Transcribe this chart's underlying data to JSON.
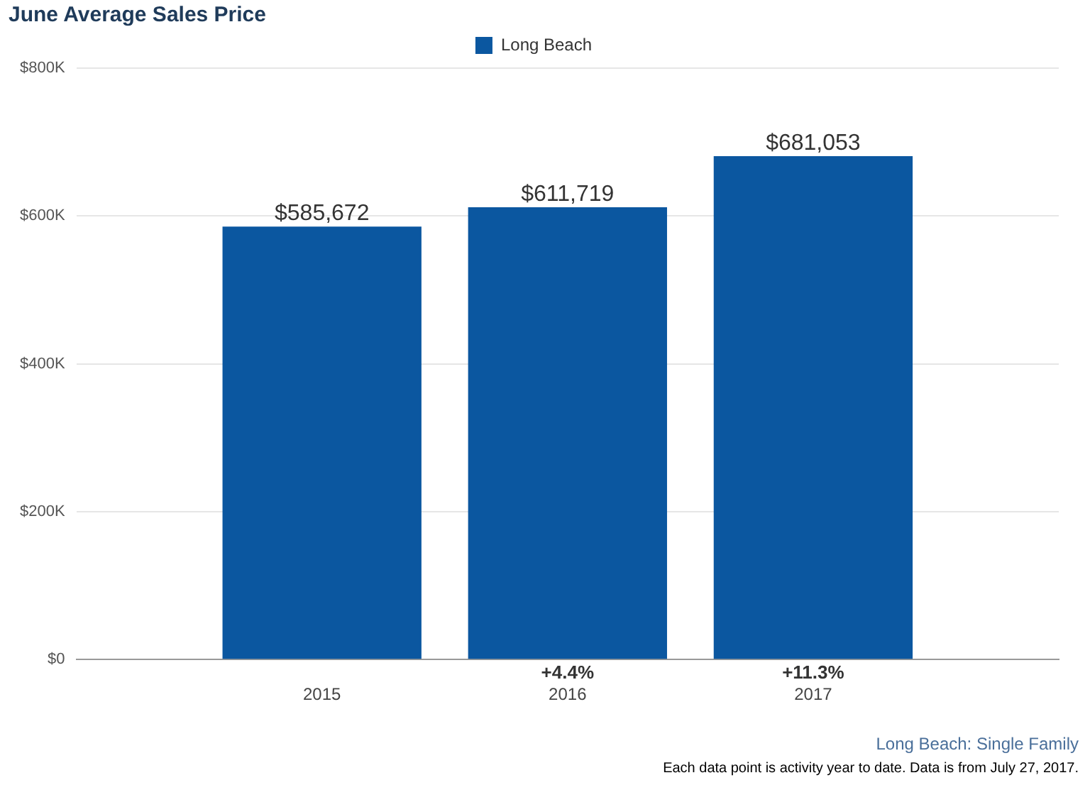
{
  "chart_data": {
    "type": "bar",
    "title": "June Average Sales Price",
    "categories": [
      "2015",
      "2016",
      "2017"
    ],
    "series": [
      {
        "name": "Long Beach",
        "color": "#0b57a0",
        "values": [
          585672,
          611719,
          681053
        ],
        "value_labels": [
          "$585,672",
          "$611,719",
          "$681,053"
        ]
      }
    ],
    "ylim": [
      0,
      800000
    ],
    "yticks": [
      {
        "value": 0,
        "label": "$0"
      },
      {
        "value": 200000,
        "label": "$200K"
      },
      {
        "value": 400000,
        "label": "$400K"
      },
      {
        "value": 600000,
        "label": "$600K"
      },
      {
        "value": 800000,
        "label": "$800K"
      }
    ],
    "grid": "y",
    "legend": "top",
    "annotations": [
      "+4.4%",
      "+11.3%",
      "Long Beach: Single Family",
      "Each data point is activity year to date. Data is from July 27, 2017."
    ]
  }
}
